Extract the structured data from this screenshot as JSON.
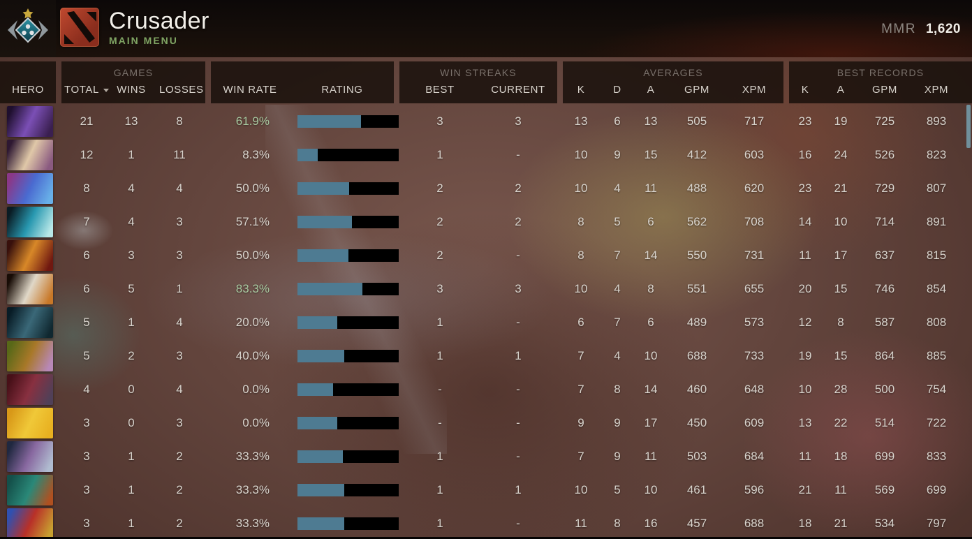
{
  "header": {
    "rank_title": "Crusader",
    "menu_label": "MAIN MENU",
    "mmr_label": "MMR",
    "mmr_value": "1,620"
  },
  "table_header": {
    "hero": "HERO",
    "games_group": "GAMES",
    "total": "TOTAL",
    "wins": "WINS",
    "losses": "LOSSES",
    "win_rate": "WIN RATE",
    "rating": "RATING",
    "win_streaks_group": "WIN STREAKS",
    "best": "BEST",
    "current": "CURRENT",
    "averages_group": "AVERAGES",
    "k": "K",
    "d": "D",
    "a": "A",
    "gpm": "GPM",
    "xpm": "XPM",
    "best_records_group": "BEST RECORDS",
    "record_k": "K",
    "record_a": "A",
    "record_gpm": "GPM",
    "record_xpm": "XPM"
  },
  "colors": {
    "bar-fill": "#4e7b92",
    "bar-empty": "#000000",
    "win-rate-highlight": "#a8c9a0",
    "text-primary": "#d9d4cd",
    "menu-green": "#7fa463",
    "scrollbar": "#70909c"
  },
  "rows": [
    {
      "total": "21",
      "wins": "13",
      "losses": "8",
      "win_rate": "61.9%",
      "win_rate_highlight": true,
      "rating_fill_pct": 63,
      "best": "3",
      "current": "3",
      "k": "13",
      "d": "6",
      "a": "13",
      "gpm": "505",
      "xpm": "717",
      "record_k": "23",
      "record_a": "19",
      "record_gpm": "725",
      "record_xpm": "893",
      "portrait": [
        "#1f0f2e",
        "#7b4fb5",
        "#3a1f50"
      ]
    },
    {
      "total": "12",
      "wins": "1",
      "losses": "11",
      "win_rate": "8.3%",
      "win_rate_highlight": false,
      "rating_fill_pct": 20,
      "best": "1",
      "current": "-",
      "k": "10",
      "d": "9",
      "a": "15",
      "gpm": "412",
      "xpm": "603",
      "record_k": "16",
      "record_a": "24",
      "record_gpm": "526",
      "record_xpm": "823",
      "portrait": [
        "#2e1832",
        "#e0c8a8",
        "#8a5a80"
      ]
    },
    {
      "total": "8",
      "wins": "4",
      "losses": "4",
      "win_rate": "50.0%",
      "win_rate_highlight": false,
      "rating_fill_pct": 51,
      "best": "2",
      "current": "2",
      "k": "10",
      "d": "4",
      "a": "11",
      "gpm": "488",
      "xpm": "620",
      "record_k": "23",
      "record_a": "21",
      "record_gpm": "729",
      "record_xpm": "807",
      "portrait": [
        "#8a3888",
        "#4a6ad0",
        "#68b0e8"
      ]
    },
    {
      "total": "7",
      "wins": "4",
      "losses": "3",
      "win_rate": "57.1%",
      "win_rate_highlight": false,
      "rating_fill_pct": 54,
      "best": "2",
      "current": "2",
      "k": "8",
      "d": "5",
      "a": "6",
      "gpm": "562",
      "xpm": "708",
      "record_k": "14",
      "record_a": "10",
      "record_gpm": "714",
      "record_xpm": "891",
      "portrait": [
        "#0a1c24",
        "#2898b0",
        "#b8e8e8"
      ]
    },
    {
      "total": "6",
      "wins": "3",
      "losses": "3",
      "win_rate": "50.0%",
      "win_rate_highlight": false,
      "rating_fill_pct": 50,
      "best": "2",
      "current": "-",
      "k": "8",
      "d": "7",
      "a": "14",
      "gpm": "550",
      "xpm": "731",
      "record_k": "11",
      "record_a": "17",
      "record_gpm": "637",
      "record_xpm": "815",
      "portrait": [
        "#38100c",
        "#d88828",
        "#701810"
      ]
    },
    {
      "total": "6",
      "wins": "5",
      "losses": "1",
      "win_rate": "83.3%",
      "win_rate_highlight": true,
      "rating_fill_pct": 64,
      "best": "3",
      "current": "3",
      "k": "10",
      "d": "4",
      "a": "8",
      "gpm": "551",
      "xpm": "655",
      "record_k": "20",
      "record_a": "15",
      "record_gpm": "746",
      "record_xpm": "854",
      "portrait": [
        "#180c06",
        "#e0d8c8",
        "#c87828"
      ]
    },
    {
      "total": "5",
      "wins": "1",
      "losses": "4",
      "win_rate": "20.0%",
      "win_rate_highlight": false,
      "rating_fill_pct": 39,
      "best": "1",
      "current": "-",
      "k": "6",
      "d": "7",
      "a": "6",
      "gpm": "489",
      "xpm": "573",
      "record_k": "12",
      "record_a": "8",
      "record_gpm": "587",
      "record_xpm": "808",
      "portrait": [
        "#081c26",
        "#3a6878",
        "#102830"
      ]
    },
    {
      "total": "5",
      "wins": "2",
      "losses": "3",
      "win_rate": "40.0%",
      "win_rate_highlight": false,
      "rating_fill_pct": 46,
      "best": "1",
      "current": "1",
      "k": "7",
      "d": "4",
      "a": "10",
      "gpm": "688",
      "xpm": "733",
      "record_k": "19",
      "record_a": "15",
      "record_gpm": "864",
      "record_xpm": "885",
      "portrait": [
        "#586818",
        "#a87828",
        "#b888b8"
      ]
    },
    {
      "total": "4",
      "wins": "0",
      "losses": "4",
      "win_rate": "0.0%",
      "win_rate_highlight": false,
      "rating_fill_pct": 35,
      "best": "-",
      "current": "-",
      "k": "7",
      "d": "8",
      "a": "14",
      "gpm": "460",
      "xpm": "648",
      "record_k": "10",
      "record_a": "28",
      "record_gpm": "500",
      "record_xpm": "754",
      "portrait": [
        "#481018",
        "#883040",
        "#504058"
      ]
    },
    {
      "total": "3",
      "wins": "0",
      "losses": "3",
      "win_rate": "0.0%",
      "win_rate_highlight": false,
      "rating_fill_pct": 39,
      "best": "-",
      "current": "-",
      "k": "9",
      "d": "9",
      "a": "17",
      "gpm": "450",
      "xpm": "609",
      "record_k": "13",
      "record_a": "22",
      "record_gpm": "514",
      "record_xpm": "722",
      "portrait": [
        "#d89818",
        "#f0c838",
        "#e8b020"
      ]
    },
    {
      "total": "3",
      "wins": "1",
      "losses": "2",
      "win_rate": "33.3%",
      "win_rate_highlight": false,
      "rating_fill_pct": 45,
      "best": "1",
      "current": "-",
      "k": "7",
      "d": "9",
      "a": "11",
      "gpm": "503",
      "xpm": "684",
      "record_k": "11",
      "record_a": "18",
      "record_gpm": "699",
      "record_xpm": "833",
      "portrait": [
        "#202840",
        "#8868a0",
        "#b0bcd0"
      ]
    },
    {
      "total": "3",
      "wins": "1",
      "losses": "2",
      "win_rate": "33.3%",
      "win_rate_highlight": false,
      "rating_fill_pct": 46,
      "best": "1",
      "current": "1",
      "k": "10",
      "d": "5",
      "a": "10",
      "gpm": "461",
      "xpm": "596",
      "record_k": "21",
      "record_a": "11",
      "record_gpm": "569",
      "record_xpm": "699",
      "portrait": [
        "#14504a",
        "#2a8878",
        "#b05020"
      ]
    },
    {
      "total": "3",
      "wins": "1",
      "losses": "2",
      "win_rate": "33.3%",
      "win_rate_highlight": false,
      "rating_fill_pct": 46,
      "best": "1",
      "current": "-",
      "k": "11",
      "d": "8",
      "a": "16",
      "gpm": "457",
      "xpm": "688",
      "record_k": "18",
      "record_a": "21",
      "record_gpm": "534",
      "record_xpm": "797",
      "portrait": [
        "#3050b0",
        "#b83028",
        "#c8a030"
      ]
    }
  ]
}
